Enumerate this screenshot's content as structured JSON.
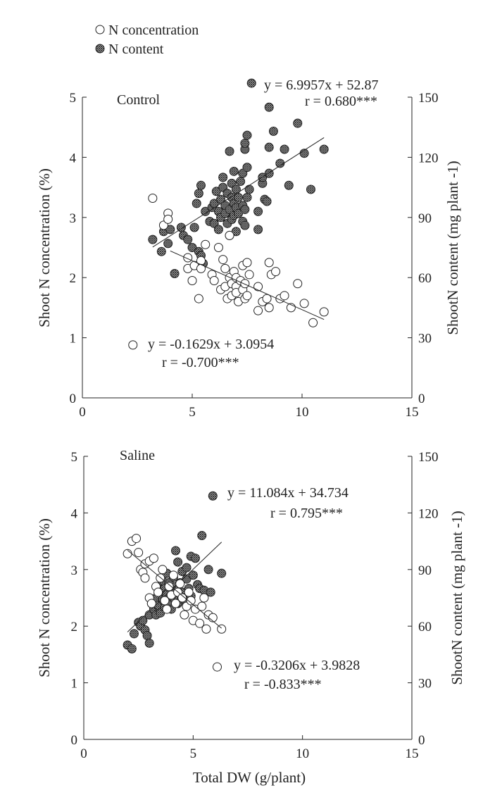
{
  "legend": {
    "concentration_label": "N concentration",
    "content_label": "N content"
  },
  "chart_data": [
    {
      "type": "scatter",
      "title": "Control",
      "xlabel": "",
      "ylabel_left": "Shoot N concentration (%)",
      "ylabel_right": "ShootN content (mg plant -1)",
      "xlim": [
        0,
        15
      ],
      "ylim_left": [
        0,
        5
      ],
      "ylim_right": [
        0,
        150
      ],
      "xticks": [
        "0",
        "5",
        "10",
        "15"
      ],
      "yticks_left": [
        "0",
        "1",
        "2",
        "3",
        "4",
        "5"
      ],
      "yticks_right": [
        "0",
        "30",
        "60",
        "90",
        "120",
        "150"
      ],
      "annotations": {
        "content_eq": "y = 6.9957x + 52.87",
        "content_r": "r = 0.680***",
        "concentration_eq": "y = -0.1629x + 3.0954",
        "concentration_r": "r = -0.700***"
      },
      "series": [
        {
          "name": "N content",
          "axis": "right",
          "fit": {
            "slope": 6.9957,
            "intercept": 52.87,
            "x_range": [
              3.2,
              11.0
            ]
          },
          "points": [
            [
              3.2,
              79
            ],
            [
              3.6,
              73
            ],
            [
              3.7,
              83
            ],
            [
              3.9,
              77
            ],
            [
              4.0,
              84
            ],
            [
              4.2,
              62
            ],
            [
              4.5,
              85
            ],
            [
              4.6,
              81
            ],
            [
              4.8,
              79
            ],
            [
              5.0,
              75
            ],
            [
              5.1,
              85
            ],
            [
              5.2,
              97
            ],
            [
              5.3,
              73
            ],
            [
              5.3,
              102
            ],
            [
              5.4,
              71
            ],
            [
              5.4,
              106
            ],
            [
              5.5,
              67
            ],
            [
              5.6,
              93
            ],
            [
              5.8,
              88
            ],
            [
              5.9,
              95
            ],
            [
              6.0,
              87
            ],
            [
              6.0,
              97
            ],
            [
              6.1,
              103
            ],
            [
              6.2,
              84
            ],
            [
              6.2,
              93
            ],
            [
              6.3,
              90
            ],
            [
              6.3,
              99
            ],
            [
              6.4,
              105
            ],
            [
              6.4,
              110
            ],
            [
              6.5,
              92
            ],
            [
              6.5,
              96
            ],
            [
              6.6,
              87
            ],
            [
              6.6,
              102
            ],
            [
              6.7,
              81
            ],
            [
              6.7,
              94
            ],
            [
              6.7,
              123
            ],
            [
              6.8,
              89
            ],
            [
              6.8,
              100
            ],
            [
              6.8,
              107
            ],
            [
              6.9,
              91
            ],
            [
              6.9,
              97
            ],
            [
              6.9,
              113
            ],
            [
              7.0,
              83
            ],
            [
              7.0,
              95
            ],
            [
              7.0,
              104
            ],
            [
              7.1,
              92
            ],
            [
              7.1,
              100
            ],
            [
              7.2,
              108
            ],
            [
              7.3,
              88
            ],
            [
              7.3,
              96
            ],
            [
              7.3,
              112
            ],
            [
              7.4,
              86
            ],
            [
              7.4,
              94
            ],
            [
              7.4,
              124
            ],
            [
              7.4,
              127
            ],
            [
              7.5,
              100
            ],
            [
              7.5,
              115
            ],
            [
              7.5,
              131
            ],
            [
              7.6,
              104
            ],
            [
              8.0,
              84
            ],
            [
              8.0,
              93
            ],
            [
              8.2,
              107
            ],
            [
              8.2,
              110
            ],
            [
              8.3,
              99
            ],
            [
              8.4,
              98
            ],
            [
              8.5,
              125
            ],
            [
              8.5,
              112
            ],
            [
              8.5,
              145
            ],
            [
              8.7,
              133
            ],
            [
              9.0,
              117
            ],
            [
              9.2,
              124
            ],
            [
              9.4,
              106
            ],
            [
              9.8,
              137
            ],
            [
              10.1,
              122
            ],
            [
              10.4,
              104
            ],
            [
              11.0,
              124
            ],
            [
              7.7,
              157
            ]
          ]
        },
        {
          "name": "N concentration",
          "axis": "left",
          "fit": {
            "slope": -0.1629,
            "intercept": 3.0954,
            "x_range": [
              4.0,
              11.0
            ]
          },
          "points": [
            [
              3.2,
              3.32
            ],
            [
              3.7,
              2.87
            ],
            [
              3.9,
              3.07
            ],
            [
              3.9,
              2.97
            ],
            [
              4.8,
              2.33
            ],
            [
              4.8,
              2.15
            ],
            [
              5.0,
              1.95
            ],
            [
              5.1,
              2.2
            ],
            [
              5.3,
              1.65
            ],
            [
              5.4,
              2.28
            ],
            [
              5.4,
              2.15
            ],
            [
              5.6,
              2.55
            ],
            [
              5.9,
              2.05
            ],
            [
              6.0,
              1.95
            ],
            [
              6.2,
              2.5
            ],
            [
              6.3,
              1.8
            ],
            [
              6.4,
              2.3
            ],
            [
              6.5,
              2.15
            ],
            [
              6.5,
              1.85
            ],
            [
              6.6,
              1.65
            ],
            [
              6.7,
              2.0
            ],
            [
              6.7,
              2.7
            ],
            [
              6.8,
              1.9
            ],
            [
              6.8,
              1.7
            ],
            [
              6.9,
              2.1
            ],
            [
              7.0,
              1.85
            ],
            [
              7.0,
              1.75
            ],
            [
              7.0,
              2.0
            ],
            [
              7.1,
              1.6
            ],
            [
              7.2,
              1.95
            ],
            [
              7.3,
              1.8
            ],
            [
              7.3,
              2.2
            ],
            [
              7.4,
              1.65
            ],
            [
              7.4,
              1.9
            ],
            [
              7.5,
              2.25
            ],
            [
              7.5,
              1.7
            ],
            [
              7.6,
              2.05
            ],
            [
              8.0,
              1.85
            ],
            [
              8.0,
              1.45
            ],
            [
              8.2,
              1.6
            ],
            [
              8.4,
              1.65
            ],
            [
              8.5,
              1.5
            ],
            [
              8.6,
              2.05
            ],
            [
              8.8,
              2.1
            ],
            [
              8.5,
              2.25
            ],
            [
              9.0,
              1.65
            ],
            [
              9.2,
              1.7
            ],
            [
              9.5,
              1.5
            ],
            [
              9.8,
              1.9
            ],
            [
              10.1,
              1.57
            ],
            [
              10.5,
              1.25
            ],
            [
              11.0,
              1.43
            ],
            [
              2.3,
              0.88
            ]
          ]
        }
      ]
    },
    {
      "type": "scatter",
      "title": "Saline",
      "xlabel": "Total DW (g/plant)",
      "ylabel_left": "Shoot N concentration (%)",
      "ylabel_right": "ShootN content (mg plant -1)",
      "xlim": [
        0,
        15
      ],
      "ylim_left": [
        0,
        5
      ],
      "ylim_right": [
        0,
        150
      ],
      "xticks": [
        "0",
        "5",
        "10",
        "15"
      ],
      "yticks_left": [
        "0",
        "1",
        "2",
        "3",
        "4",
        "5"
      ],
      "yticks_right": [
        "0",
        "30",
        "60",
        "90",
        "120",
        "150"
      ],
      "annotations": {
        "content_eq": "y = 11.084x + 34.734",
        "content_r": "r = 0.795***",
        "concentration_eq": "y = -0.3206x + 3.9828",
        "concentration_r": "r = -0.833***"
      },
      "series": [
        {
          "name": "N content",
          "axis": "right",
          "fit": {
            "slope": 11.084,
            "intercept": 34.734,
            "x_range": [
              2.0,
              6.3
            ]
          },
          "points": [
            [
              2.0,
              50
            ],
            [
              2.2,
              48
            ],
            [
              2.3,
              56
            ],
            [
              2.5,
              62
            ],
            [
              2.6,
              60
            ],
            [
              2.7,
              63
            ],
            [
              2.8,
              58
            ],
            [
              2.9,
              55
            ],
            [
              3.0,
              51
            ],
            [
              3.0,
              66
            ],
            [
              3.1,
              72
            ],
            [
              3.2,
              69
            ],
            [
              3.3,
              75
            ],
            [
              3.3,
              66
            ],
            [
              3.4,
              80
            ],
            [
              3.4,
              71
            ],
            [
              3.5,
              78
            ],
            [
              3.5,
              67
            ],
            [
              3.6,
              84
            ],
            [
              3.6,
              74
            ],
            [
              3.7,
              70
            ],
            [
              3.7,
              80
            ],
            [
              3.8,
              77
            ],
            [
              3.8,
              88
            ],
            [
              3.9,
              73
            ],
            [
              3.9,
              83
            ],
            [
              4.0,
              79
            ],
            [
              4.0,
              69
            ],
            [
              4.1,
              86
            ],
            [
              4.1,
              75
            ],
            [
              4.2,
              81
            ],
            [
              4.2,
              100
            ],
            [
              4.3,
              72
            ],
            [
              4.3,
              94
            ],
            [
              4.4,
              83
            ],
            [
              4.5,
              78
            ],
            [
              4.5,
              89
            ],
            [
              4.6,
              74
            ],
            [
              4.7,
              85
            ],
            [
              4.7,
              91
            ],
            [
              4.8,
              80
            ],
            [
              4.9,
              76
            ],
            [
              4.9,
              97
            ],
            [
              5.0,
              87
            ],
            [
              5.1,
              96
            ],
            [
              5.2,
              82
            ],
            [
              5.3,
              80
            ],
            [
              5.4,
              108
            ],
            [
              5.5,
              79
            ],
            [
              5.7,
              90
            ],
            [
              5.8,
              78
            ],
            [
              6.3,
              88
            ],
            [
              5.9,
              129
            ]
          ]
        },
        {
          "name": "N concentration",
          "axis": "left",
          "fit": {
            "slope": -0.3206,
            "intercept": 3.9828,
            "x_range": [
              2.0,
              6.3
            ]
          },
          "points": [
            [
              2.0,
              3.28
            ],
            [
              2.2,
              3.5
            ],
            [
              2.4,
              3.55
            ],
            [
              2.5,
              3.3
            ],
            [
              2.6,
              3.0
            ],
            [
              2.7,
              2.95
            ],
            [
              2.8,
              2.85
            ],
            [
              2.8,
              3.1
            ],
            [
              3.0,
              2.5
            ],
            [
              3.0,
              3.15
            ],
            [
              3.1,
              2.4
            ],
            [
              3.2,
              3.2
            ],
            [
              3.3,
              2.7
            ],
            [
              3.4,
              2.6
            ],
            [
              3.5,
              2.85
            ],
            [
              3.6,
              3.0
            ],
            [
              3.7,
              2.45
            ],
            [
              3.8,
              2.3
            ],
            [
              3.9,
              2.7
            ],
            [
              4.0,
              2.55
            ],
            [
              4.1,
              2.9
            ],
            [
              4.2,
              2.4
            ],
            [
              4.3,
              2.6
            ],
            [
              4.4,
              2.75
            ],
            [
              4.5,
              2.5
            ],
            [
              4.6,
              2.2
            ],
            [
              4.7,
              2.35
            ],
            [
              4.8,
              2.6
            ],
            [
              4.9,
              2.45
            ],
            [
              5.0,
              2.1
            ],
            [
              5.1,
              2.3
            ],
            [
              5.3,
              2.05
            ],
            [
              5.4,
              2.35
            ],
            [
              5.5,
              2.5
            ],
            [
              5.6,
              1.95
            ],
            [
              5.7,
              2.2
            ],
            [
              5.9,
              2.15
            ],
            [
              6.3,
              1.95
            ],
            [
              6.1,
              1.28
            ]
          ]
        }
      ]
    }
  ]
}
